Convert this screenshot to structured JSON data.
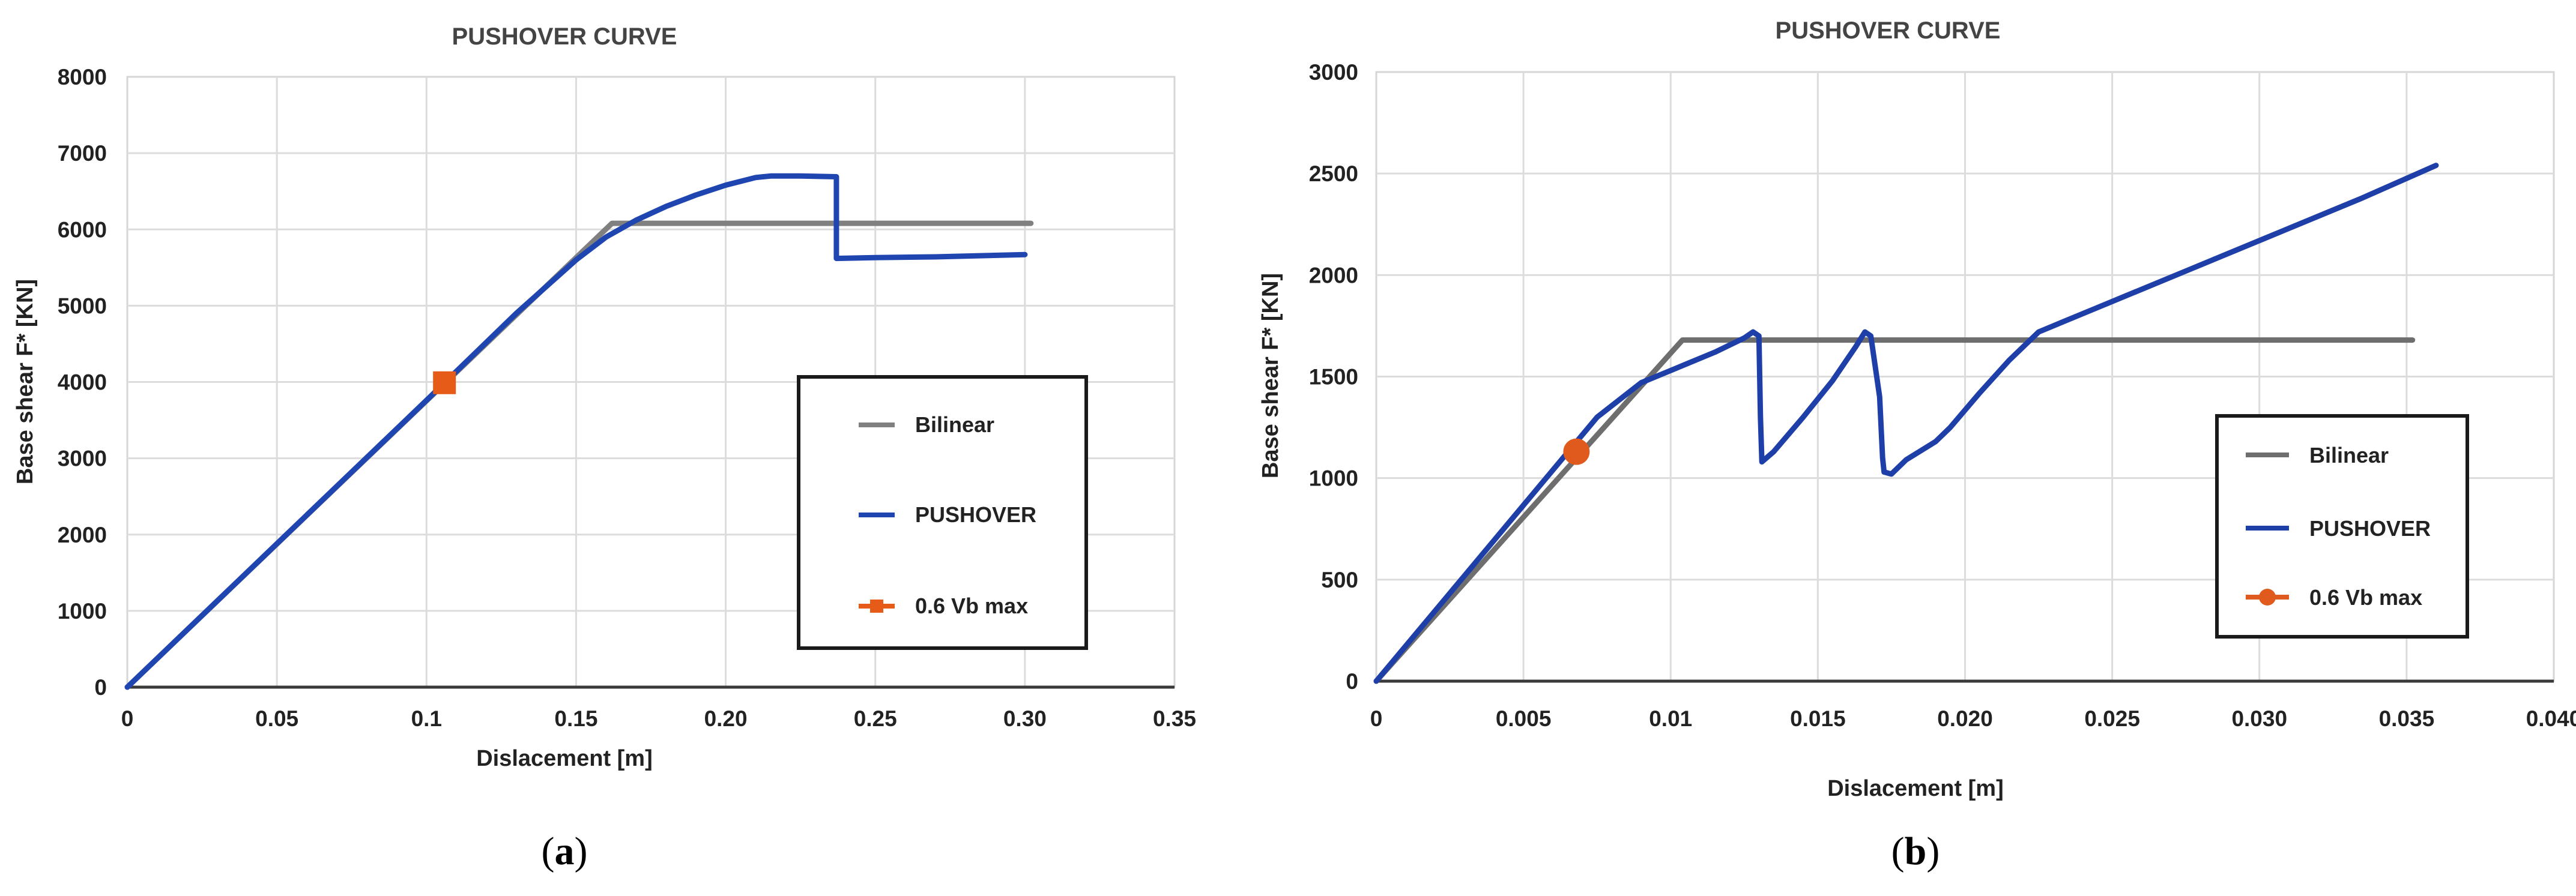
{
  "chart_data": [
    {
      "id": "a",
      "type": "line",
      "title": "PUSHOVER CURVE",
      "xlabel": "Dislacement [m]",
      "ylabel": "Base shear F* [KN]",
      "xlim": [
        0,
        0.35
      ],
      "ylim": [
        0,
        8000
      ],
      "xticks": [
        0,
        0.05,
        0.1,
        0.15,
        0.2,
        0.25,
        0.3,
        0.35
      ],
      "xtick_labels": [
        "0",
        "0.05",
        "0.1",
        "0.15",
        "0.20",
        "0.25",
        "0.30",
        "0.35"
      ],
      "yticks": [
        0,
        1000,
        2000,
        3000,
        4000,
        5000,
        6000,
        7000,
        8000
      ],
      "ytick_labels": [
        "0",
        "1000",
        "2000",
        "3000",
        "4000",
        "5000",
        "6000",
        "7000",
        "8000"
      ],
      "grid": true,
      "legend_position": "right",
      "series": [
        {
          "name": "Bilinear",
          "color": "#808080",
          "marker": "none",
          "x": [
            0,
            0.162,
            0.302
          ],
          "y": [
            0,
            6080,
            6080
          ]
        },
        {
          "name": "PUSHOVER",
          "color": "#1f45b0",
          "marker": "none",
          "x": [
            0,
            0.05,
            0.1,
            0.13,
            0.15,
            0.16,
            0.17,
            0.18,
            0.19,
            0.2,
            0.21,
            0.215,
            0.225,
            0.237,
            0.237,
            0.25,
            0.27,
            0.3
          ],
          "y": [
            0,
            1880,
            3760,
            4900,
            5600,
            5900,
            6120,
            6300,
            6450,
            6580,
            6680,
            6700,
            6700,
            6690,
            5620,
            5630,
            5640,
            5670
          ]
        },
        {
          "name": "0.6 Vb max",
          "color": "#e55b17",
          "marker": "square",
          "x": [
            0.106
          ],
          "y": [
            3990
          ]
        }
      ],
      "caption": "a"
    },
    {
      "id": "b",
      "type": "line",
      "title": "PUSHOVER CURVE",
      "xlabel": "Dislacement [m]",
      "ylabel": "Base shear F* [KN]",
      "xlim": [
        0,
        0.04
      ],
      "ylim": [
        0,
        3000
      ],
      "xticks": [
        0,
        0.005,
        0.01,
        0.015,
        0.02,
        0.025,
        0.03,
        0.035,
        0.04
      ],
      "xtick_labels": [
        "0",
        "0.005",
        "0.01",
        "0.015",
        "0.020",
        "0.025",
        "0.030",
        "0.035",
        "0.040"
      ],
      "yticks": [
        0,
        500,
        1000,
        1500,
        2000,
        2500,
        3000
      ],
      "ytick_labels": [
        "0",
        "500",
        "1000",
        "1500",
        "2000",
        "2500",
        "3000"
      ],
      "grid": true,
      "legend_position": "right",
      "series": [
        {
          "name": "Bilinear",
          "color": "#6e6e6e",
          "marker": "none",
          "x": [
            0,
            0.0104,
            0.0352
          ],
          "y": [
            0,
            1680,
            1680
          ]
        },
        {
          "name": "PUSHOVER",
          "color": "#1f3fa8",
          "marker": "none",
          "x": [
            0,
            0.003,
            0.006,
            0.0075,
            0.009,
            0.0105,
            0.0115,
            0.0125,
            0.0128,
            0.013,
            0.01305,
            0.0131,
            0.0135,
            0.0145,
            0.0155,
            0.0163,
            0.0166,
            0.0168,
            0.0171,
            0.0172,
            0.01725,
            0.0175,
            0.018,
            0.019,
            0.0195,
            0.0205,
            0.0215,
            0.0225,
            0.0245,
            0.0275,
            0.0305,
            0.0335,
            0.036
          ],
          "y": [
            0,
            520,
            1040,
            1300,
            1470,
            1560,
            1620,
            1690,
            1720,
            1700,
            1300,
            1080,
            1130,
            1300,
            1480,
            1650,
            1720,
            1700,
            1400,
            1100,
            1030,
            1020,
            1090,
            1180,
            1250,
            1420,
            1580,
            1720,
            1840,
            2020,
            2200,
            2380,
            2540
          ]
        },
        {
          "name": "0.6 Vb max",
          "color": "#e05a1e",
          "marker": "circle",
          "x": [
            0.0068
          ],
          "y": [
            1130
          ]
        }
      ],
      "caption": "b"
    }
  ]
}
